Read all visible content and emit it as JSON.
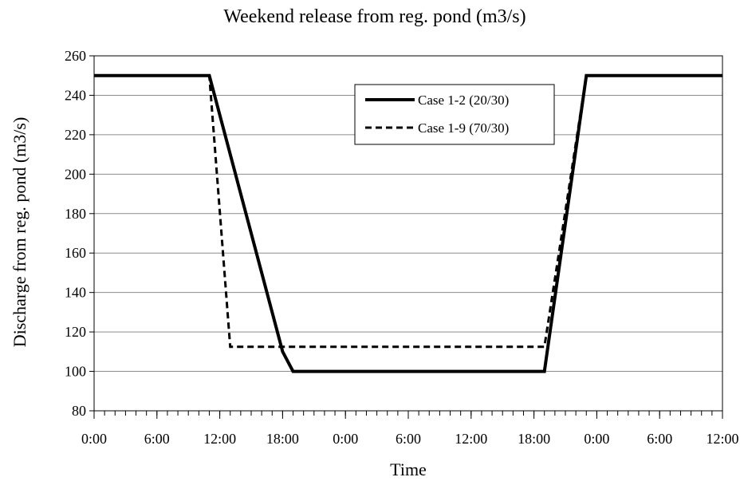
{
  "chart_data": {
    "type": "line",
    "title": "Weekend release from reg. pond (m3/s)",
    "xlabel": "Time",
    "ylabel": "Discharge from reg. pond (m3/s)",
    "xlim": [
      0,
      60
    ],
    "ylim": [
      80,
      260
    ],
    "yticks": [
      80,
      100,
      120,
      140,
      160,
      180,
      200,
      220,
      240,
      260
    ],
    "xticks": [
      {
        "x": 0,
        "label": "0:00"
      },
      {
        "x": 6,
        "label": "6:00"
      },
      {
        "x": 12,
        "label": "12:00"
      },
      {
        "x": 18,
        "label": "18:00"
      },
      {
        "x": 24,
        "label": "0:00"
      },
      {
        "x": 30,
        "label": "6:00"
      },
      {
        "x": 36,
        "label": "12:00"
      },
      {
        "x": 42,
        "label": "18:00"
      },
      {
        "x": 48,
        "label": "0:00"
      },
      {
        "x": 54,
        "label": "6:00"
      },
      {
        "x": 60,
        "label": "12:00"
      }
    ],
    "minor_tick_step": 1,
    "grid": "horizontal",
    "legend_position": "top-right",
    "series": [
      {
        "name": "Case 1-2 (20/30)",
        "style": "solid",
        "color": "#000000",
        "points": [
          [
            0,
            250
          ],
          [
            11,
            250
          ],
          [
            18,
            110
          ],
          [
            19,
            100
          ],
          [
            43,
            100
          ],
          [
            47,
            250
          ],
          [
            60,
            250
          ]
        ]
      },
      {
        "name": "Case 1-9 (70/30)",
        "style": "dashed",
        "color": "#000000",
        "points": [
          [
            0,
            250
          ],
          [
            11,
            250
          ],
          [
            13,
            112.5
          ],
          [
            43,
            112.5
          ],
          [
            47,
            250
          ],
          [
            60,
            250
          ]
        ]
      }
    ]
  }
}
